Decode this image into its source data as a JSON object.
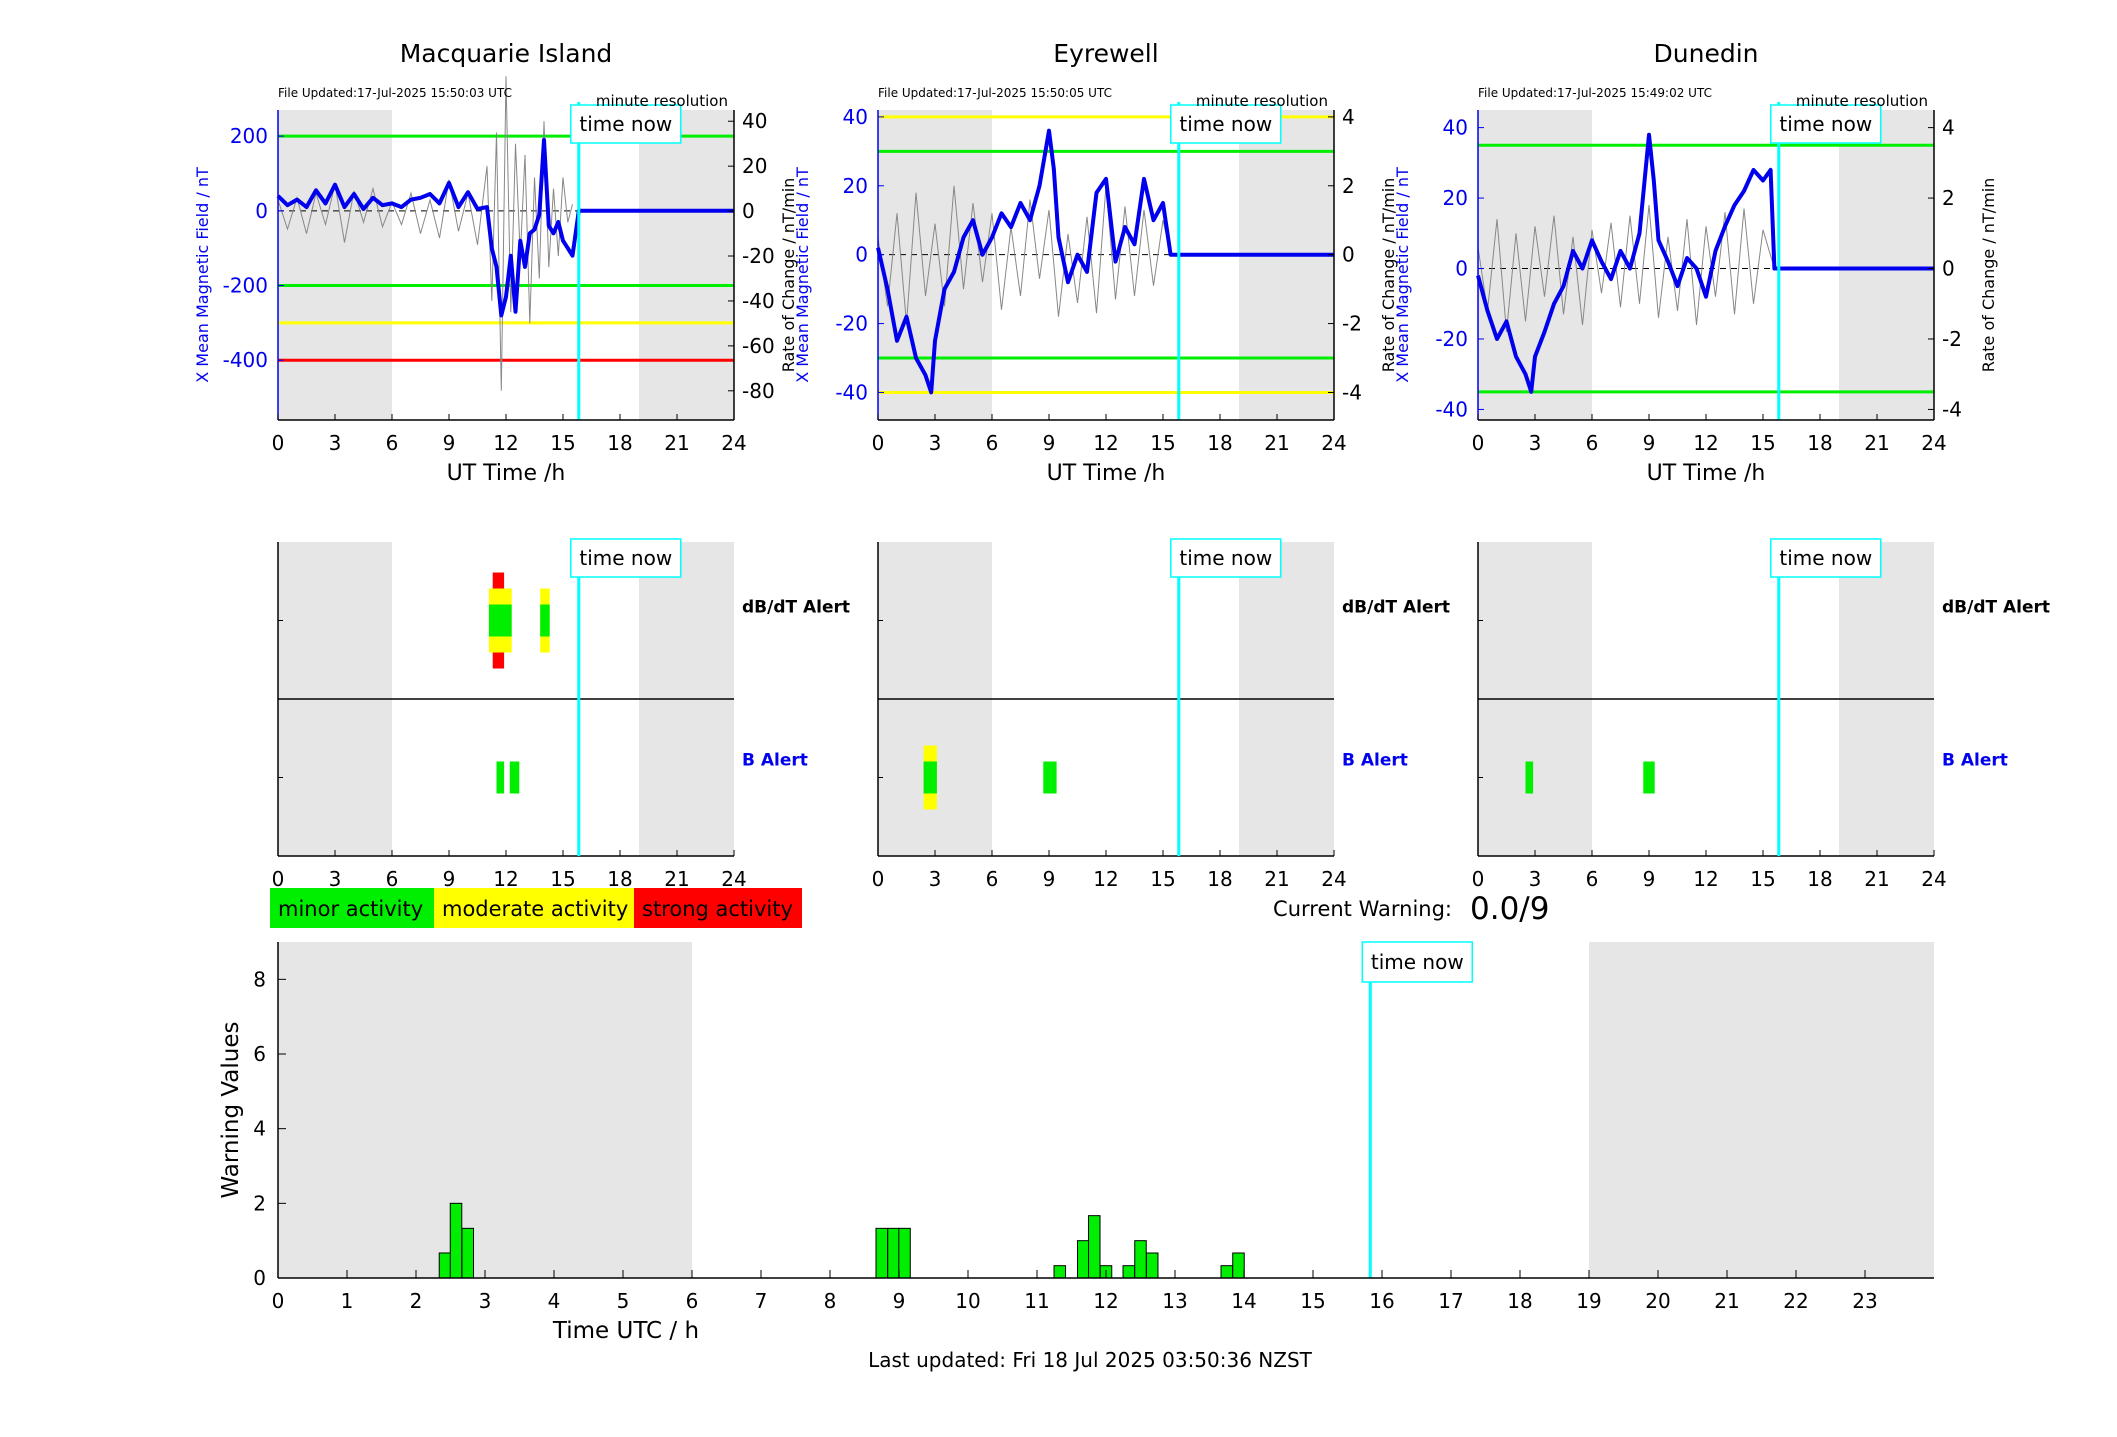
{
  "colors": {
    "shade": "#e6e6e6",
    "green": "#00ee00",
    "yellow": "#ffff00",
    "red": "#ff0000",
    "cyan": "#00ffff",
    "blue": "#0000ee",
    "trace": "#888888"
  },
  "icons": [
    "time-now-marker",
    "legend-swatch"
  ],
  "stations": [
    {
      "name": "Macquarie Island",
      "file_updated": "File Updated:17-Jul-2025 15:50:03 UTC",
      "resolution": "minute resolution",
      "ylabel_left": "X Mean Magnetic Field / nT",
      "ylabel_right": "Rate of Change / nT/min",
      "xlabel": "UT Time /h",
      "time_now_label": "time now",
      "time_now": 15.83,
      "left_ylim": [
        -560,
        270
      ],
      "left_ticks": [
        200,
        0,
        -200,
        -400
      ],
      "right_ylim": [
        -93,
        45
      ],
      "right_ticks": [
        40,
        20,
        0,
        -20,
        -40,
        -60,
        -80
      ],
      "shade": [
        [
          0,
          6
        ],
        [
          19,
          24
        ]
      ],
      "thresholds": [
        {
          "value": 200,
          "color": "green"
        },
        {
          "value": -200,
          "color": "green"
        },
        {
          "value": -300,
          "color": "yellow"
        },
        {
          "value": -400,
          "color": "red"
        }
      ],
      "field_series": {
        "x": [
          0,
          0.5,
          1,
          1.5,
          2,
          2.5,
          3,
          3.5,
          4,
          4.5,
          5,
          5.5,
          6,
          6.5,
          7,
          7.5,
          8,
          8.5,
          9,
          9.5,
          10,
          10.5,
          11,
          11.25,
          11.5,
          11.75,
          12,
          12.25,
          12.5,
          12.75,
          13,
          13.25,
          13.5,
          13.75,
          14,
          14.25,
          14.5,
          14.75,
          15,
          15.25,
          15.5,
          15.83,
          24
        ],
        "y": [
          40,
          15,
          30,
          10,
          55,
          20,
          70,
          10,
          45,
          5,
          35,
          15,
          20,
          10,
          30,
          35,
          45,
          20,
          75,
          10,
          50,
          5,
          10,
          -100,
          -150,
          -280,
          -230,
          -120,
          -270,
          -80,
          -150,
          -60,
          -50,
          -10,
          190,
          -40,
          -60,
          -30,
          -80,
          -100,
          -120,
          0,
          0
        ]
      },
      "rate_series": {
        "x": [
          0,
          0.5,
          1,
          1.5,
          2,
          2.5,
          3,
          3.5,
          4,
          4.5,
          5,
          5.5,
          6,
          6.5,
          7,
          7.5,
          8,
          8.5,
          9,
          9.5,
          10,
          10.5,
          11,
          11.25,
          11.5,
          11.75,
          12,
          12.25,
          12.5,
          12.75,
          13,
          13.25,
          13.5,
          13.75,
          14,
          14.25,
          14.5,
          14.75,
          15,
          15.25,
          15.5
        ],
        "y": [
          5,
          -8,
          6,
          -10,
          8,
          -6,
          12,
          -14,
          9,
          -5,
          10,
          -7,
          4,
          -6,
          8,
          -10,
          5,
          -12,
          14,
          -9,
          8,
          -15,
          20,
          -40,
          35,
          -80,
          60,
          -45,
          30,
          -20,
          25,
          -50,
          15,
          -30,
          40,
          -25,
          10,
          -20,
          15,
          -5,
          3
        ]
      },
      "alerts": {
        "dbdt_label": "dB/dT Alert",
        "b_label": "B Alert",
        "dbdt_bars": [
          {
            "start": 11.3,
            "end": 11.9,
            "level": "red",
            "height": 3
          },
          {
            "start": 11.1,
            "end": 12.3,
            "level": "yellow",
            "height": 2
          },
          {
            "start": 11.1,
            "end": 12.3,
            "level": "green",
            "height": 1
          },
          {
            "start": 13.8,
            "end": 14.3,
            "level": "yellow",
            "height": 2
          },
          {
            "start": 13.8,
            "end": 14.3,
            "level": "green",
            "height": 1
          }
        ],
        "b_bars": [
          {
            "start": 11.5,
            "end": 11.9,
            "level": "green",
            "height": 1
          },
          {
            "start": 12.2,
            "end": 12.7,
            "level": "green",
            "height": 1
          }
        ]
      }
    },
    {
      "name": "Eyrewell",
      "file_updated": "File Updated:17-Jul-2025 15:50:05 UTC",
      "resolution": "minute resolution",
      "ylabel_left": "X Mean Magnetic Field / nT",
      "ylabel_right": "Rate of Change / nT/min",
      "xlabel": "UT Time /h",
      "time_now_label": "time now",
      "time_now": 15.83,
      "left_ylim": [
        -48,
        42
      ],
      "left_ticks": [
        40,
        20,
        0,
        -20,
        -40
      ],
      "right_ylim": [
        -4.8,
        4.2
      ],
      "right_ticks": [
        4,
        2,
        0,
        -2,
        -4
      ],
      "shade": [
        [
          0,
          6
        ],
        [
          19,
          24
        ]
      ],
      "thresholds": [
        {
          "value": 40,
          "color": "yellow"
        },
        {
          "value": 30,
          "color": "green"
        },
        {
          "value": -30,
          "color": "green"
        },
        {
          "value": -40,
          "color": "yellow"
        }
      ],
      "field_series": {
        "x": [
          0,
          0.5,
          1,
          1.5,
          2,
          2.5,
          2.8,
          3,
          3.5,
          4,
          4.5,
          5,
          5.5,
          6,
          6.5,
          7,
          7.5,
          8,
          8.5,
          9,
          9.25,
          9.5,
          10,
          10.5,
          11,
          11.5,
          12,
          12.5,
          13,
          13.5,
          14,
          14.5,
          15,
          15.4,
          15.83,
          24
        ],
        "y": [
          2,
          -10,
          -25,
          -18,
          -30,
          -35,
          -40,
          -25,
          -10,
          -5,
          5,
          10,
          0,
          5,
          12,
          8,
          15,
          10,
          20,
          36,
          25,
          5,
          -8,
          0,
          -5,
          18,
          22,
          -2,
          8,
          3,
          22,
          10,
          15,
          0,
          0,
          0
        ]
      },
      "rate_series": {
        "x": [
          0,
          0.5,
          1,
          1.5,
          2,
          2.5,
          3,
          3.5,
          4,
          4.5,
          5,
          5.5,
          6,
          6.5,
          7,
          7.5,
          8,
          8.5,
          9,
          9.5,
          10,
          10.5,
          11,
          11.5,
          12,
          12.5,
          13,
          13.5,
          14,
          14.5,
          15,
          15.4
        ],
        "y": [
          0.5,
          -1.5,
          1.2,
          -2,
          1.8,
          -1.2,
          0.9,
          -1.5,
          2,
          -1,
          1.5,
          -0.8,
          1.2,
          -1.6,
          0.8,
          -1.2,
          1.6,
          -0.7,
          1.3,
          -1.8,
          0.6,
          -1.4,
          1.1,
          -1.7,
          2,
          -1.3,
          1.4,
          -1.2,
          1.3,
          -0.9,
          1,
          0
        ]
      },
      "alerts": {
        "dbdt_label": "dB/dT Alert",
        "b_label": "B Alert",
        "dbdt_bars": [],
        "b_bars": [
          {
            "start": 2.4,
            "end": 3.1,
            "level": "yellow",
            "height": 2
          },
          {
            "start": 2.4,
            "end": 3.1,
            "level": "green",
            "height": 1
          },
          {
            "start": 8.7,
            "end": 9.4,
            "level": "green",
            "height": 1
          }
        ]
      }
    },
    {
      "name": "Dunedin",
      "file_updated": "File Updated:17-Jul-2025 15:49:02 UTC",
      "resolution": "minute resolution",
      "ylabel_left": "X Mean Magnetic Field / nT",
      "ylabel_right": "Rate of Change / nT/min",
      "xlabel": "UT Time /h",
      "time_now_label": "time now",
      "time_now": 15.83,
      "left_ylim": [
        -43,
        45
      ],
      "left_ticks": [
        40,
        20,
        0,
        -20,
        -40
      ],
      "right_ylim": [
        -4.3,
        4.5
      ],
      "right_ticks": [
        4,
        2,
        0,
        -2,
        -4
      ],
      "shade": [
        [
          0,
          6
        ],
        [
          19,
          24
        ]
      ],
      "thresholds": [
        {
          "value": 35,
          "color": "green"
        },
        {
          "value": -35,
          "color": "green"
        }
      ],
      "field_series": {
        "x": [
          0,
          0.5,
          1,
          1.5,
          2,
          2.5,
          2.8,
          3,
          3.5,
          4,
          4.5,
          5,
          5.5,
          6,
          6.5,
          7,
          7.5,
          8,
          8.5,
          9,
          9.25,
          9.5,
          10,
          10.5,
          11,
          11.5,
          12,
          12.5,
          13,
          13.5,
          14,
          14.5,
          15,
          15.4,
          15.6,
          15.83,
          24
        ],
        "y": [
          -2,
          -12,
          -20,
          -15,
          -25,
          -30,
          -35,
          -25,
          -18,
          -10,
          -5,
          5,
          0,
          8,
          2,
          -3,
          5,
          0,
          10,
          38,
          25,
          8,
          2,
          -5,
          3,
          0,
          -8,
          5,
          12,
          18,
          22,
          28,
          25,
          28,
          0,
          0,
          0
        ]
      },
      "rate_series": {
        "x": [
          0,
          0.5,
          1,
          1.5,
          2,
          2.5,
          3,
          3.5,
          4,
          4.5,
          5,
          5.5,
          6,
          6.5,
          7,
          7.5,
          8,
          8.5,
          9,
          9.5,
          10,
          10.5,
          11,
          11.5,
          12,
          12.5,
          13,
          13.5,
          14,
          14.5,
          15,
          15.6
        ],
        "y": [
          0.6,
          -1.2,
          1.4,
          -1.8,
          1,
          -1.5,
          1.2,
          -0.8,
          1.5,
          -1.3,
          0.9,
          -1.6,
          1.1,
          -0.7,
          1.3,
          -1.1,
          1.5,
          -1,
          1.8,
          -1.4,
          0.9,
          -1.2,
          1.4,
          -1.6,
          1.2,
          -0.8,
          1.6,
          -1.3,
          1.7,
          -1,
          1.1,
          0
        ]
      },
      "alerts": {
        "dbdt_label": "dB/dT Alert",
        "b_label": "B Alert",
        "dbdt_bars": [],
        "b_bars": [
          {
            "start": 2.5,
            "end": 2.9,
            "level": "green",
            "height": 1
          },
          {
            "start": 8.7,
            "end": 9.3,
            "level": "green",
            "height": 1
          }
        ]
      }
    }
  ],
  "x_ticks_small": [
    0,
    3,
    6,
    9,
    12,
    15,
    18,
    21,
    24
  ],
  "legend": [
    {
      "label": "minor activity",
      "color": "green"
    },
    {
      "label": "moderate activity",
      "color": "yellow"
    },
    {
      "label": "strong activity",
      "color": "red"
    }
  ],
  "current_warning": {
    "label": "Current Warning:",
    "value": "0.0/9"
  },
  "chart_data": {
    "type": "bar",
    "title": "",
    "xlabel": "Time UTC / h",
    "ylabel": "Warning Values",
    "xlim": [
      0,
      24
    ],
    "ylim": [
      0,
      9
    ],
    "x_ticks": [
      0,
      1,
      2,
      3,
      4,
      5,
      6,
      7,
      8,
      9,
      10,
      11,
      12,
      13,
      14,
      15,
      16,
      17,
      18,
      19,
      20,
      21,
      22,
      23
    ],
    "y_ticks": [
      0,
      2,
      4,
      6,
      8
    ],
    "shade": [
      [
        0,
        6
      ],
      [
        19,
        24
      ]
    ],
    "time_now": 15.83,
    "time_now_label": "time now",
    "bar_width": 0.1667,
    "x": [
      2.42,
      2.58,
      2.75,
      8.75,
      8.92,
      9.08,
      11.33,
      11.67,
      11.83,
      12.0,
      12.33,
      12.5,
      12.67,
      13.75,
      13.92
    ],
    "values": [
      0.67,
      2.0,
      1.33,
      1.33,
      1.33,
      1.33,
      0.33,
      1.0,
      1.67,
      0.33,
      0.33,
      1.0,
      0.67,
      0.33,
      0.67
    ]
  },
  "footer": {
    "last_updated": "Last updated: Fri 18 Jul 2025 03:50:36 NZST"
  }
}
